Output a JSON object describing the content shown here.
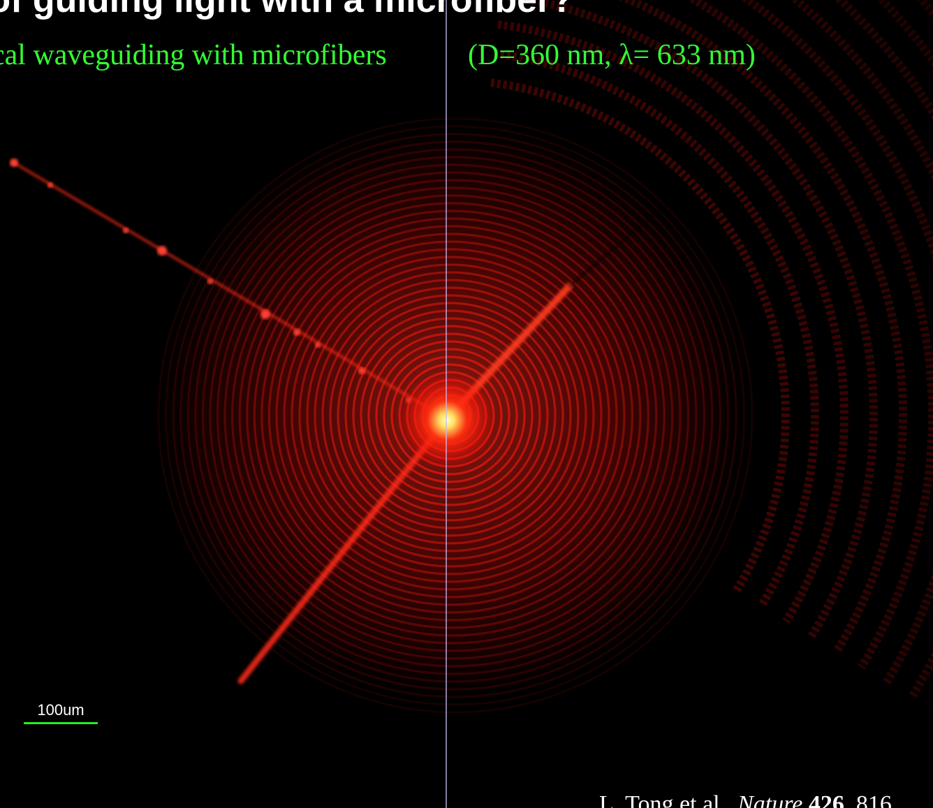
{
  "slide": {
    "title": "y of guiding light with a microfiber?",
    "subtitle": "cal waveguiding with microfibers",
    "subtitle_params": "(D=360 nm,  λ= 633 nm)",
    "scale_bar_label": "100um",
    "citation": {
      "authors": "L. Tong et al.,",
      "journal": "Nature",
      "volume": "426",
      "page": ", 816"
    }
  },
  "colors": {
    "background": "#000000",
    "title": "#ffffff",
    "subtitle": "#33ff33",
    "glow": "#ff1a10",
    "scale_bar": "#22ee22"
  }
}
